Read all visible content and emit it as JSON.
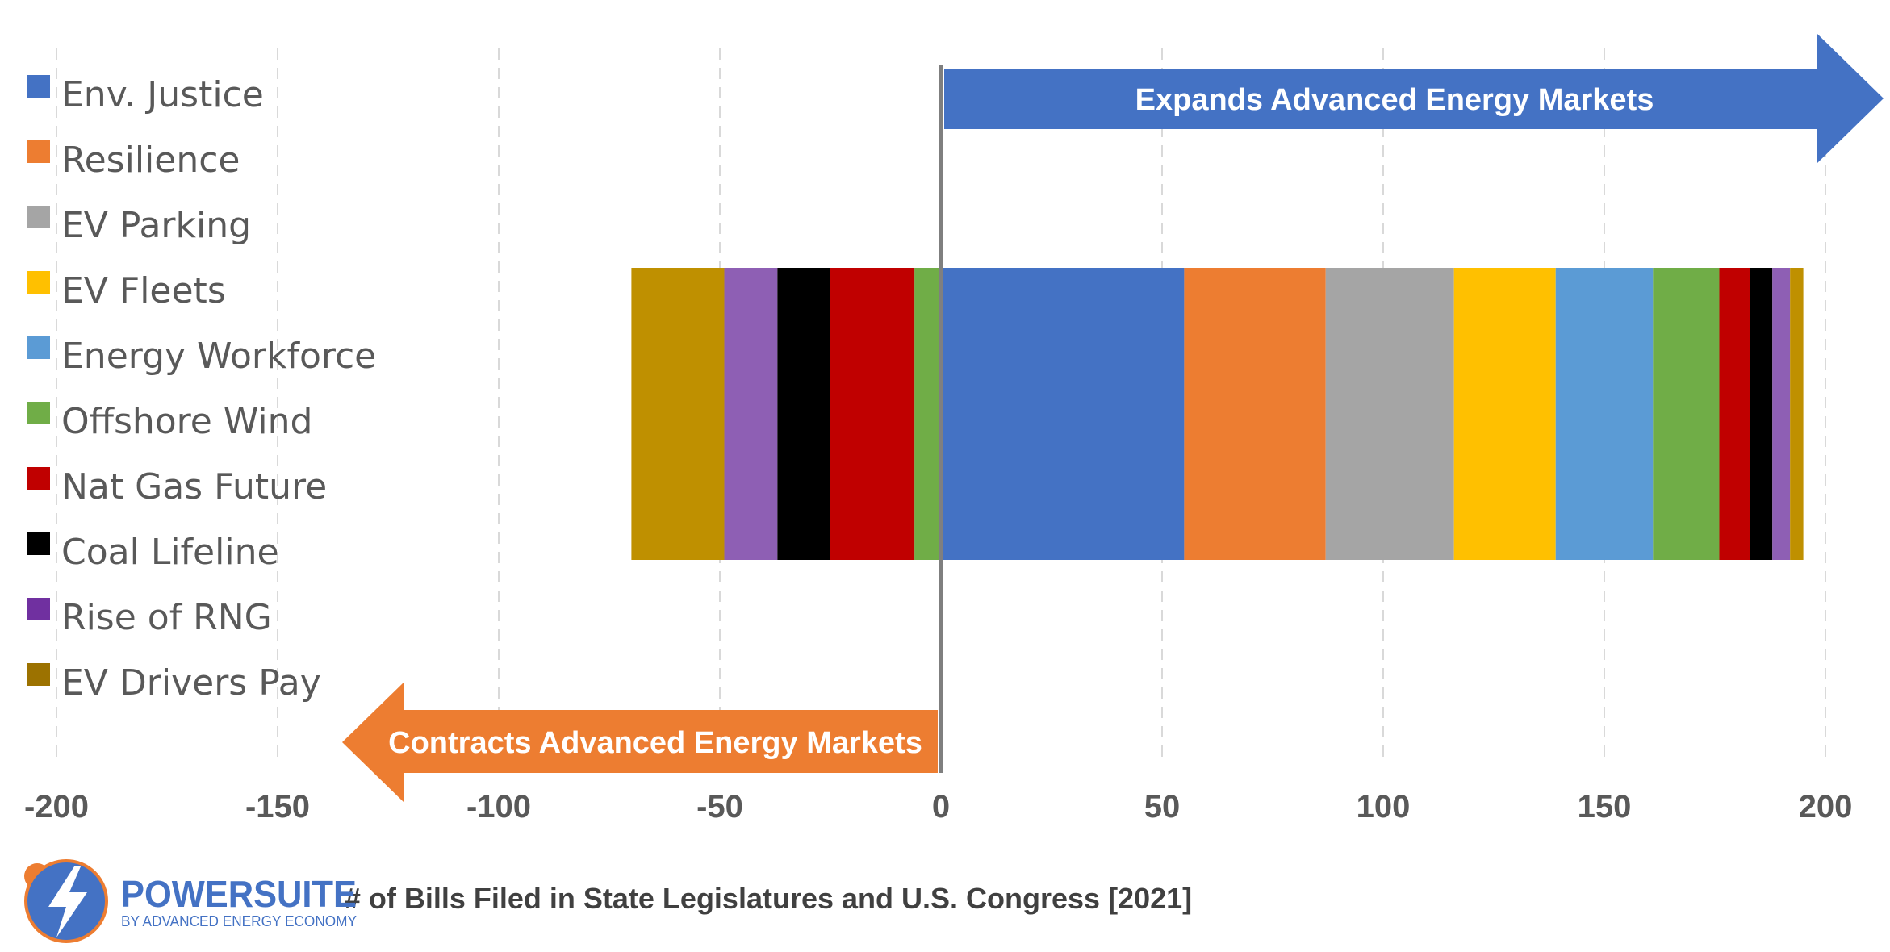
{
  "chart_data": {
    "type": "bar",
    "orientation": "horizontal",
    "stacked": true,
    "xlabel": "# of Bills Filed in State Legislatures and U.S. Congress [2021]",
    "xlim": [
      -200,
      200
    ],
    "xticks": [
      -200,
      -150,
      -100,
      -50,
      0,
      50,
      100,
      150,
      200
    ],
    "xtick_labels": [
      "-200",
      "-150",
      "-100",
      "-50",
      "0",
      "50",
      "100",
      "150",
      "200"
    ],
    "grid": "vertical dashed",
    "legend_position": "left",
    "series": [
      {
        "name": "Env. Justice",
        "color": "#4472c4",
        "value": 55
      },
      {
        "name": "Resilience",
        "color": "#ed7d31",
        "value": 32
      },
      {
        "name": "EV Parking",
        "color": "#a5a5a5",
        "value": 29
      },
      {
        "name": "EV Fleets",
        "color": "#ffc000",
        "value": 23
      },
      {
        "name": "Energy Workforce",
        "color": "#5b9bd5",
        "value": 22
      },
      {
        "name": "Offshore Wind",
        "color": "#70ad47",
        "value": -6,
        "positive_value": 15
      },
      {
        "name": "Nat Gas Future",
        "color": "#c00000",
        "value": -19,
        "positive_value": 7
      },
      {
        "name": "Coal Lifeline",
        "color": "#000000",
        "value": -12,
        "positive_value": 5
      },
      {
        "name": "Rise of RNG",
        "color": "#8e5fb4",
        "value": -12,
        "positive_value": 4
      },
      {
        "name": "EV Drivers Pay",
        "color": "#bf9000",
        "value": -21,
        "positive_value": 3
      }
    ],
    "legend_swatch_colors": [
      "#4472c4",
      "#ed7d31",
      "#a5a5a5",
      "#ffc000",
      "#5b9bd5",
      "#70ad47",
      "#c00000",
      "#000000",
      "#7030a0",
      "#9c7200"
    ],
    "annotations": [
      {
        "text": "Expands Advanced Energy Markets",
        "direction": "right",
        "color": "#4472c4"
      },
      {
        "text": "Contracts Advanced Energy Markets",
        "direction": "left",
        "color": "#ed7d31"
      }
    ]
  },
  "logo": {
    "name": "POWERSUITE",
    "tagline": "BY ADVANCED ENERGY ECONOMY",
    "colors": {
      "circle": "#4472c4",
      "accent": "#ed7d31"
    }
  }
}
